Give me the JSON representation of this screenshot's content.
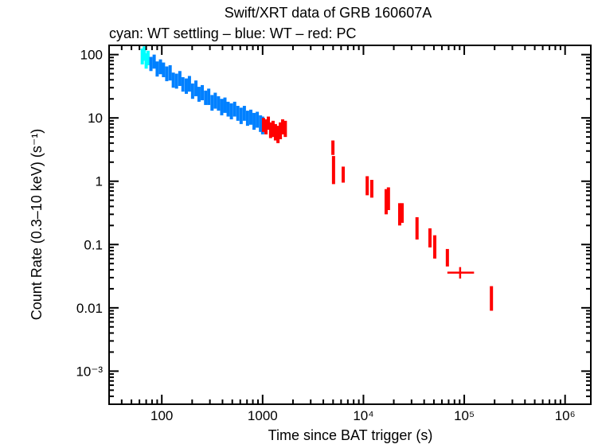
{
  "chart_data": {
    "type": "scatter",
    "title": "Swift/XRT data of GRB 160607A",
    "subtitle": "cyan: WT settling – blue: WT – red: PC",
    "xlabel": "Time since BAT trigger (s)",
    "ylabel": "Count Rate (0.3–10 keV) (s⁻¹)",
    "xscale": "log",
    "yscale": "log",
    "xlim": [
      30,
      1800000
    ],
    "ylim": [
      0.0003,
      140
    ],
    "grid": false,
    "x_ticks": [
      {
        "value": 100,
        "label": "100"
      },
      {
        "value": 1000,
        "label": "1000"
      },
      {
        "value": 10000,
        "label": "10⁴"
      },
      {
        "value": 100000,
        "label": "10⁵"
      },
      {
        "value": 1000000,
        "label": "10⁶"
      }
    ],
    "y_ticks": [
      {
        "value": 100,
        "label": "100"
      },
      {
        "value": 10,
        "label": "10"
      },
      {
        "value": 1,
        "label": "1"
      },
      {
        "value": 0.1,
        "label": "0.1"
      },
      {
        "value": 0.01,
        "label": "0.01"
      },
      {
        "value": 0.001,
        "label": "10⁻³"
      }
    ],
    "point_columns": [
      "time_s",
      "rate",
      "rate_low",
      "rate_high"
    ],
    "series": [
      {
        "mode": "WT settling",
        "color": "#00ffff",
        "points": [
          [
            64,
            95,
            70,
            125
          ],
          [
            67,
            110,
            80,
            135
          ],
          [
            70,
            80,
            60,
            105
          ],
          [
            73,
            90,
            68,
            115
          ]
        ]
      },
      {
        "mode": "WT",
        "color": "#0080ff",
        "points": [
          [
            78,
            72,
            55,
            92
          ],
          [
            84,
            80,
            60,
            100
          ],
          [
            90,
            60,
            45,
            78
          ],
          [
            97,
            65,
            49,
            84
          ],
          [
            104,
            58,
            44,
            75
          ],
          [
            112,
            50,
            38,
            65
          ],
          [
            121,
            52,
            39,
            68
          ],
          [
            130,
            40,
            30,
            52
          ],
          [
            140,
            38,
            29,
            50
          ],
          [
            151,
            42,
            32,
            55
          ],
          [
            162,
            34,
            26,
            44
          ],
          [
            175,
            32,
            24,
            42
          ],
          [
            188,
            35,
            26,
            46
          ],
          [
            202,
            27,
            20,
            35
          ],
          [
            218,
            30,
            22,
            39
          ],
          [
            234,
            24,
            18,
            31
          ],
          [
            252,
            25,
            19,
            33
          ],
          [
            272,
            21,
            16,
            27
          ],
          [
            292,
            22,
            16,
            29
          ],
          [
            315,
            18,
            13,
            23
          ],
          [
            339,
            19,
            14,
            25
          ],
          [
            365,
            17,
            13,
            22
          ],
          [
            393,
            15,
            11,
            20
          ],
          [
            423,
            16,
            12,
            21
          ],
          [
            455,
            14,
            10.5,
            18
          ],
          [
            490,
            13,
            9.5,
            17
          ],
          [
            528,
            14,
            10.5,
            18
          ],
          [
            568,
            12,
            9,
            15.5
          ],
          [
            612,
            11,
            8,
            14.5
          ],
          [
            659,
            12,
            9,
            15.5
          ],
          [
            709,
            10,
            7.5,
            13
          ],
          [
            764,
            10.5,
            7.8,
            13.5
          ],
          [
            822,
            9,
            6.5,
            12
          ],
          [
            885,
            9.5,
            7,
            12.5
          ],
          [
            953,
            8.5,
            6,
            11
          ],
          [
            1000,
            8,
            5.5,
            10.5
          ]
        ]
      },
      {
        "mode": "PC",
        "color": "#ff0000",
        "points": [
          [
            1020,
            8,
            6,
            10
          ],
          [
            1080,
            7.5,
            5.5,
            9.5
          ],
          [
            1140,
            8.5,
            6.5,
            10.5
          ],
          [
            1200,
            6.5,
            4.8,
            8.5
          ],
          [
            1270,
            7,
            5,
            9
          ],
          [
            1340,
            6,
            4.4,
            8
          ],
          [
            1420,
            5.5,
            4,
            7.5
          ],
          [
            1500,
            6.5,
            4.6,
            8.5
          ],
          [
            1580,
            7.5,
            5.5,
            9.5
          ],
          [
            1680,
            7,
            5,
            9
          ],
          [
            4980,
            3.5,
            2.6,
            4.4
          ],
          [
            5050,
            1.6,
            0.9,
            2.5
          ],
          [
            6300,
            1.3,
            0.95,
            1.7
          ],
          [
            10900,
            0.8,
            0.6,
            1.2
          ],
          [
            12100,
            0.75,
            0.55,
            1.05
          ],
          [
            16800,
            0.5,
            0.3,
            0.75
          ],
          [
            17700,
            0.55,
            0.35,
            0.8
          ],
          [
            22900,
            0.3,
            0.2,
            0.45
          ],
          [
            24200,
            0.35,
            0.22,
            0.45
          ],
          [
            34000,
            0.18,
            0.12,
            0.27
          ],
          [
            45700,
            0.12,
            0.09,
            0.18
          ],
          [
            51000,
            0.09,
            0.06,
            0.14
          ],
          [
            68000,
            0.06,
            0.045,
            0.085
          ],
          [
            186000,
            0.013,
            0.009,
            0.022
          ]
        ]
      },
      {
        "mode": "PC",
        "color": "#ff0000",
        "point_columns": [
          "time_s",
          "time_low",
          "time_high",
          "rate",
          "rate_low",
          "rate_high"
        ],
        "points": [
          [
            91000,
            68000,
            125000,
            0.036,
            0.029,
            0.044
          ]
        ]
      }
    ]
  }
}
